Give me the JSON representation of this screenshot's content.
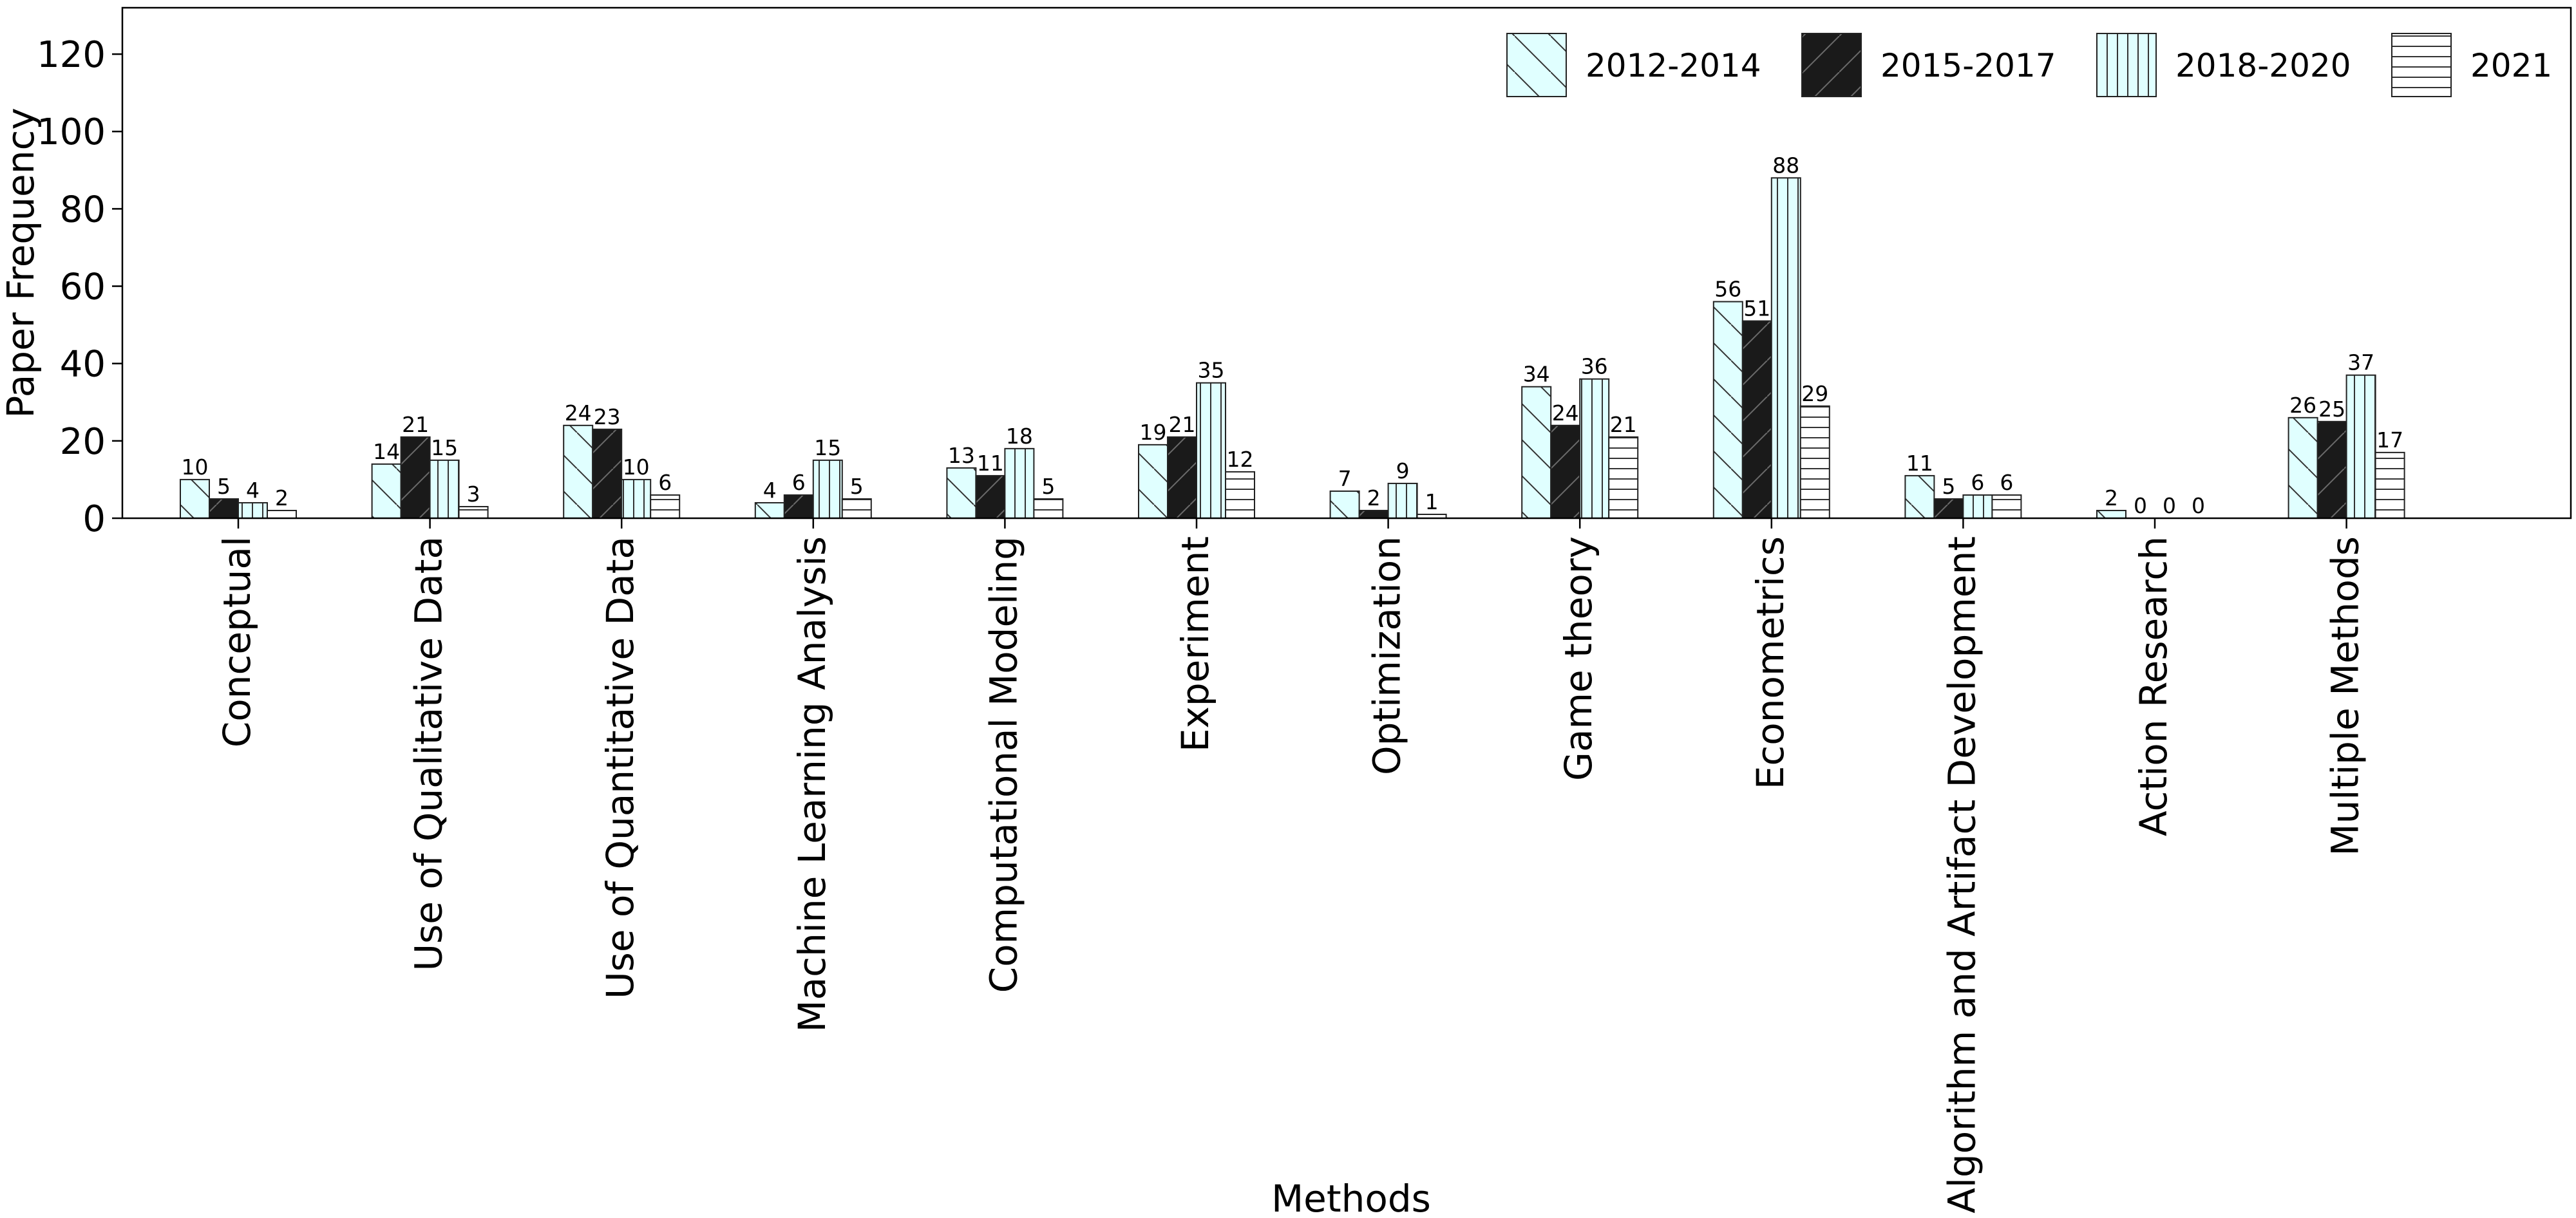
{
  "chart_data": {
    "type": "bar",
    "xlabel": "Methods",
    "ylabel": "Paper Frequency",
    "ylim": [
      0,
      132
    ],
    "yticks": [
      "0",
      "20",
      "40",
      "60",
      "80",
      "100",
      "120"
    ],
    "grid": false,
    "legend_position": "top-right",
    "categories": [
      "Conceptual",
      "Use of Qualitative Data",
      "Use of Quantitative Data",
      "Machine Learning Analysis",
      "Computational Modeling",
      "Experiment",
      "Optimization",
      "Game theory",
      "Econometrics",
      "Algorithm and Artifact Development",
      "Action Research",
      "Multiple Methods"
    ],
    "series": [
      {
        "name": "2012-2014",
        "values": [
          10,
          14,
          24,
          4,
          13,
          19,
          7,
          34,
          56,
          11,
          2,
          26
        ],
        "fill": "#e0ffff",
        "hatch": "backslash"
      },
      {
        "name": "2015-2017",
        "values": [
          5,
          21,
          23,
          6,
          11,
          21,
          2,
          24,
          51,
          5,
          0,
          25
        ],
        "fill": "#1a1a1a",
        "hatch": "slash"
      },
      {
        "name": "2018-2020",
        "values": [
          4,
          15,
          10,
          15,
          18,
          35,
          9,
          36,
          88,
          6,
          0,
          37
        ],
        "fill": "#e0ffff",
        "hatch": "vertical"
      },
      {
        "name": "2021",
        "values": [
          2,
          3,
          6,
          5,
          5,
          12,
          1,
          21,
          29,
          6,
          0,
          17
        ],
        "fill": "#ffffff",
        "hatch": "horizontal"
      }
    ]
  }
}
